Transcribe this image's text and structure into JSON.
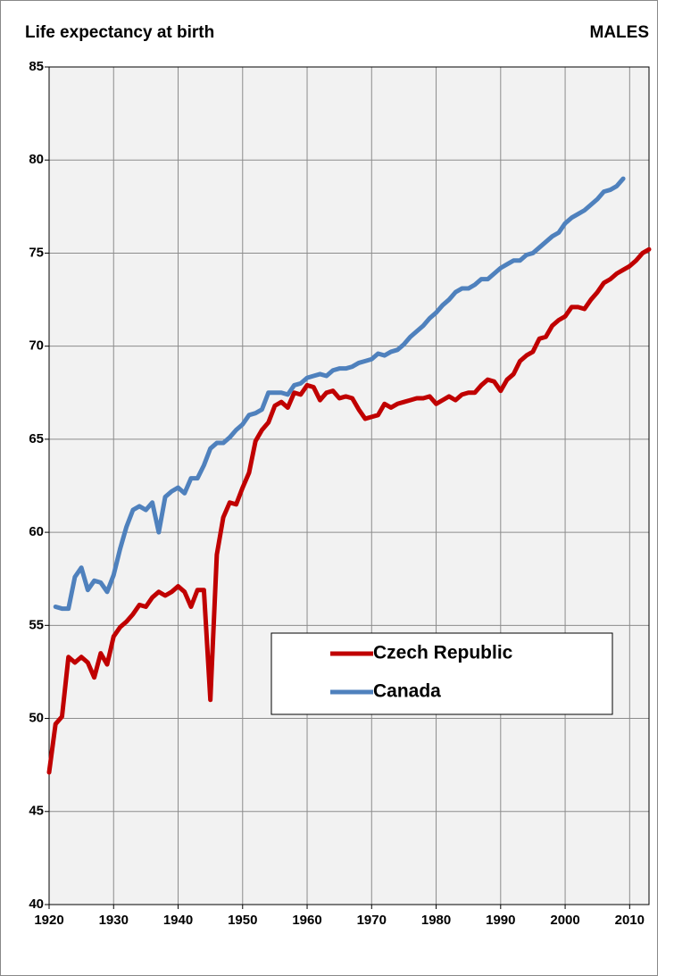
{
  "chart_data": {
    "type": "line",
    "title": "Life expectancy at birth",
    "subtitle": "MALES",
    "x": [
      1920,
      1921,
      1922,
      1923,
      1924,
      1925,
      1926,
      1927,
      1928,
      1929,
      1930,
      1931,
      1932,
      1933,
      1934,
      1935,
      1936,
      1937,
      1938,
      1939,
      1940,
      1941,
      1942,
      1943,
      1944,
      1945,
      1946,
      1947,
      1948,
      1949,
      1950,
      1951,
      1952,
      1953,
      1954,
      1955,
      1956,
      1957,
      1958,
      1959,
      1960,
      1961,
      1962,
      1963,
      1964,
      1965,
      1966,
      1967,
      1968,
      1969,
      1970,
      1971,
      1972,
      1973,
      1974,
      1975,
      1976,
      1977,
      1978,
      1979,
      1980,
      1981,
      1982,
      1983,
      1984,
      1985,
      1986,
      1987,
      1988,
      1989,
      1990,
      1991,
      1992,
      1993,
      1994,
      1995,
      1996,
      1997,
      1998,
      1999,
      2000,
      2001,
      2002,
      2003,
      2004,
      2005,
      2006,
      2007,
      2008,
      2009,
      2010,
      2011,
      2012,
      2013
    ],
    "series": [
      {
        "name": "Czech Republic",
        "color": "#c00000",
        "values": [
          47.1,
          49.7,
          50.1,
          53.3,
          53.0,
          53.3,
          53.0,
          52.2,
          53.5,
          52.9,
          54.4,
          54.9,
          55.2,
          55.6,
          56.1,
          56.0,
          56.5,
          56.8,
          56.6,
          56.8,
          57.1,
          56.8,
          56.0,
          56.9,
          56.9,
          51.0,
          58.8,
          60.8,
          61.6,
          61.5,
          62.4,
          63.2,
          64.9,
          65.5,
          65.9,
          66.8,
          67.0,
          66.7,
          67.5,
          67.4,
          67.9,
          67.8,
          67.1,
          67.5,
          67.6,
          67.2,
          67.3,
          67.2,
          66.6,
          66.1,
          66.2,
          66.3,
          66.9,
          66.7,
          66.9,
          67.0,
          67.1,
          67.2,
          67.2,
          67.3,
          66.9,
          67.1,
          67.3,
          67.1,
          67.4,
          67.5,
          67.5,
          67.9,
          68.2,
          68.1,
          67.6,
          68.2,
          68.5,
          69.2,
          69.5,
          69.7,
          70.4,
          70.5,
          71.1,
          71.4,
          71.6,
          72.1,
          72.1,
          72.0,
          72.5,
          72.9,
          73.4,
          73.6,
          73.9,
          74.1,
          74.3,
          74.6,
          75.0,
          75.2
        ]
      },
      {
        "name": "Canada",
        "color": "#4f81bd",
        "values": [
          null,
          56.0,
          55.9,
          55.9,
          57.6,
          58.1,
          56.9,
          57.4,
          57.3,
          56.8,
          57.7,
          59.1,
          60.3,
          61.2,
          61.4,
          61.2,
          61.6,
          60.0,
          61.9,
          62.2,
          62.4,
          62.1,
          62.9,
          62.9,
          63.6,
          64.5,
          64.8,
          64.8,
          65.1,
          65.5,
          65.8,
          66.3,
          66.4,
          66.6,
          67.5,
          67.5,
          67.5,
          67.4,
          67.9,
          68.0,
          68.3,
          68.4,
          68.5,
          68.4,
          68.7,
          68.8,
          68.8,
          68.9,
          69.1,
          69.2,
          69.3,
          69.6,
          69.5,
          69.7,
          69.8,
          70.1,
          70.5,
          70.8,
          71.1,
          71.5,
          71.8,
          72.2,
          72.5,
          72.9,
          73.1,
          73.1,
          73.3,
          73.6,
          73.6,
          73.9,
          74.2,
          74.4,
          74.6,
          74.6,
          74.9,
          75.0,
          75.3,
          75.6,
          75.9,
          76.1,
          76.6,
          76.9,
          77.1,
          77.3,
          77.6,
          77.9,
          78.3,
          78.4,
          78.6,
          79.0,
          null,
          null,
          null,
          null
        ]
      }
    ],
    "xlim": [
      1920,
      2013
    ],
    "xticks": [
      1920,
      1930,
      1940,
      1950,
      1960,
      1970,
      1980,
      1990,
      2000,
      2010
    ],
    "ylim": [
      40,
      85
    ],
    "yticks": [
      40,
      45,
      50,
      55,
      60,
      65,
      70,
      75,
      80,
      85
    ],
    "grid": true
  }
}
